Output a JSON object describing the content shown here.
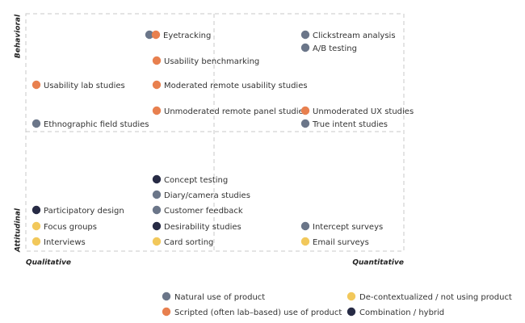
{
  "axes": {
    "top": "Behavioral",
    "bottom": "Attitudinal",
    "left": "Qualitative",
    "right": "Quantitative"
  },
  "legend": [
    {
      "label": "Natural use of product",
      "color": "#6b7689"
    },
    {
      "label": "Scripted (often lab–based) use of product",
      "color": "#e8804f"
    },
    {
      "label": "De-contextualized / not using product",
      "color": "#f2c85b"
    },
    {
      "label": "Combination / hybrid",
      "color": "#272b45"
    }
  ],
  "items": [
    {
      "label": "Eyetracking",
      "kinds": [
        0,
        1
      ]
    },
    {
      "label": "Usability benchmarking",
      "kinds": [
        1
      ]
    },
    {
      "label": "Usability lab studies",
      "kinds": [
        1
      ]
    },
    {
      "label": "Moderated remote usability studies",
      "kinds": [
        1
      ]
    },
    {
      "label": "Unmoderated remote panel studies",
      "kinds": [
        1
      ]
    },
    {
      "label": "Ethnographic field studies",
      "kinds": [
        0
      ]
    },
    {
      "label": "Clickstream analysis",
      "kinds": [
        0
      ]
    },
    {
      "label": "A/B testing",
      "kinds": [
        0
      ]
    },
    {
      "label": "Unmoderated UX studies",
      "kinds": [
        1
      ]
    },
    {
      "label": "True intent studies",
      "kinds": [
        0
      ]
    },
    {
      "label": "Concept testing",
      "kinds": [
        3
      ]
    },
    {
      "label": "Diary/camera studies",
      "kinds": [
        0
      ]
    },
    {
      "label": "Customer feedback",
      "kinds": [
        0
      ]
    },
    {
      "label": "Participatory design",
      "kinds": [
        3
      ]
    },
    {
      "label": "Focus groups",
      "kinds": [
        2
      ]
    },
    {
      "label": "Desirability studies",
      "kinds": [
        3
      ]
    },
    {
      "label": "Intercept surveys",
      "kinds": [
        0
      ]
    },
    {
      "label": "Interviews",
      "kinds": [
        2
      ]
    },
    {
      "label": "Card sorting",
      "kinds": [
        2
      ]
    },
    {
      "label": "Email surveys",
      "kinds": [
        2
      ]
    }
  ]
}
